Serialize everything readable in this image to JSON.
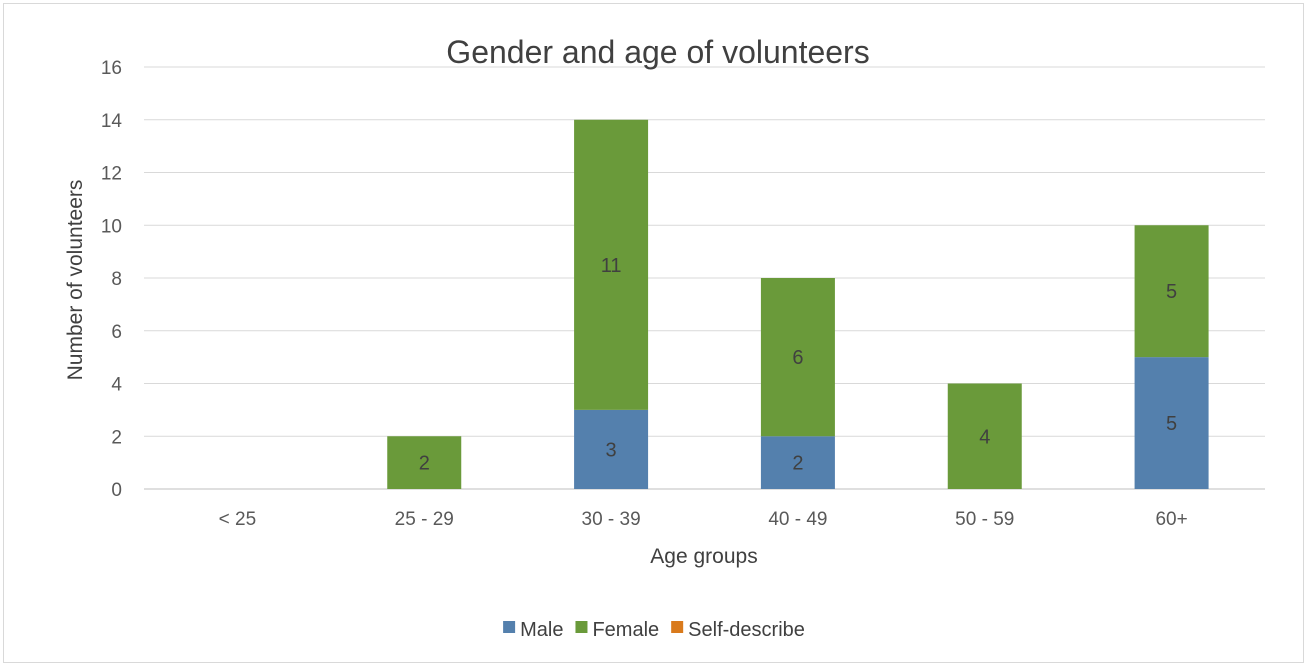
{
  "chart_data": {
    "type": "bar",
    "stacked": true,
    "title": "Gender and age of volunteers",
    "xlabel": "Age groups",
    "ylabel": "Number of volunteers",
    "ylim": [
      0,
      16
    ],
    "yticks": [
      0,
      2,
      4,
      6,
      8,
      10,
      12,
      14,
      16
    ],
    "categories": [
      "< 25",
      "25 - 29",
      "30 - 39",
      "40 - 49",
      "50 - 59",
      "60+"
    ],
    "series": [
      {
        "name": "Male",
        "color": "#5480AD",
        "values": [
          0,
          0,
          3,
          2,
          0,
          5
        ]
      },
      {
        "name": "Female",
        "color": "#6A9A3A",
        "values": [
          0,
          2,
          11,
          6,
          4,
          5
        ]
      },
      {
        "name": "Self-describe",
        "color": "#D97A1C",
        "values": [
          0,
          0,
          0,
          0,
          0,
          0
        ]
      }
    ],
    "grid": true,
    "legend_position": "bottom"
  }
}
